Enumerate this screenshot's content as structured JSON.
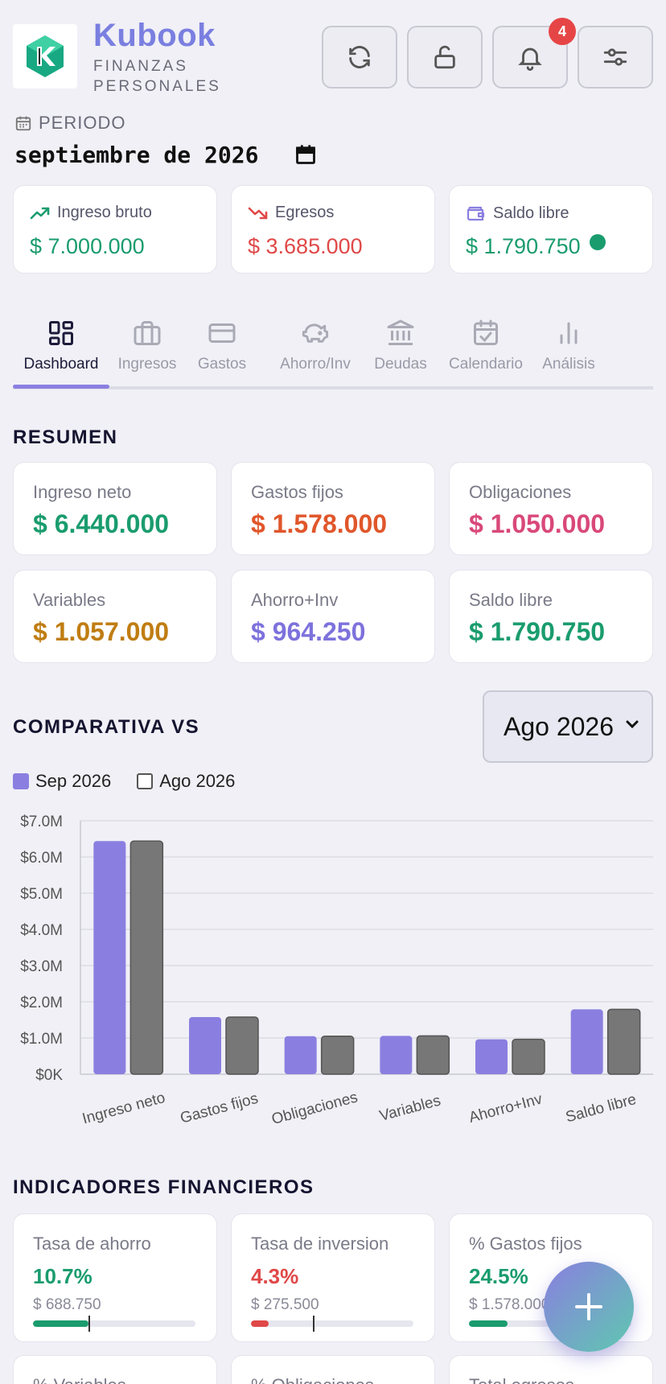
{
  "header": {
    "brand": "Kubook",
    "tagline_line1": "FINANZAS",
    "tagline_line2": "PERSONALES",
    "notifications_count": "4",
    "buttons": [
      "refresh-icon",
      "unlock-icon",
      "bell-icon",
      "settings-sliders-icon"
    ]
  },
  "period": {
    "label": "PERIODO",
    "value": "septiembre de 2026"
  },
  "top_cards": [
    {
      "label": "Ingreso bruto",
      "value": "$ 7.000.000",
      "color": "#1a9c6e",
      "icon": "trend-up-icon"
    },
    {
      "label": "Egresos",
      "value": "$ 3.685.000",
      "color": "#e04848",
      "icon": "trend-down-icon"
    },
    {
      "label": "Saldo libre",
      "value": "$ 1.790.750",
      "color": "#1a9c6e",
      "icon": "wallet-icon",
      "status_color": "#1a9c6e"
    }
  ],
  "tabs": [
    {
      "label": "Dashboard",
      "icon": "dashboard-grid-icon",
      "active": true
    },
    {
      "label": "Ingresos",
      "icon": "briefcase-icon"
    },
    {
      "label": "Gastos",
      "icon": "credit-card-icon"
    },
    {
      "label": "Ahorro/Inv",
      "icon": "piggy-bank-icon"
    },
    {
      "label": "Deudas",
      "icon": "bank-icon"
    },
    {
      "label": "Calendario",
      "icon": "calendar-check-icon"
    },
    {
      "label": "Análisis",
      "icon": "bar-chart-icon"
    }
  ],
  "resumen": {
    "title": "RESUMEN",
    "cards": [
      {
        "label": "Ingreso neto",
        "value": "$ 6.440.000",
        "color": "#1a9c6e"
      },
      {
        "label": "Gastos fijos",
        "value": "$ 1.578.000",
        "color": "#e0562a"
      },
      {
        "label": "Obligaciones",
        "value": "$ 1.050.000",
        "color": "#d9487a"
      },
      {
        "label": "Variables",
        "value": "$ 1.057.000",
        "color": "#c07d12"
      },
      {
        "label": "Ahorro+Inv",
        "value": "$ 964.250",
        "color": "#7d72dc"
      },
      {
        "label": "Saldo libre",
        "value": "$ 1.790.750",
        "color": "#1a9c6e"
      }
    ]
  },
  "comparativa": {
    "title": "COMPARATIVA VS",
    "selected": "Ago 2026",
    "legend": [
      {
        "label": "Sep 2026",
        "color": "#8a7fe0",
        "filled": true
      },
      {
        "label": "Ago 2026",
        "color": "#777777",
        "filled": false
      }
    ]
  },
  "chart_data": {
    "type": "bar",
    "categories": [
      "Ingreso neto",
      "Gastos fijos",
      "Obligaciones",
      "Variables",
      "Ahorro+Inv",
      "Saldo libre"
    ],
    "series": [
      {
        "name": "Sep 2026",
        "values": [
          6440000,
          1578000,
          1050000,
          1057000,
          964250,
          1790750
        ],
        "color": "#8a7fe0"
      },
      {
        "name": "Ago 2026",
        "values": [
          6440000,
          1578000,
          1050000,
          1057000,
          964250,
          1790750
        ],
        "color": "#777777"
      }
    ],
    "y_ticks": [
      "$0K",
      "$1.0M",
      "$2.0M",
      "$3.0M",
      "$4.0M",
      "$5.0M",
      "$6.0M",
      "$7.0M"
    ],
    "ylim": [
      0,
      7000000
    ],
    "grid": true
  },
  "indicadores": {
    "title": "INDICADORES FINANCIEROS",
    "cards": [
      {
        "label": "Tasa de ahorro",
        "value": "10.7%",
        "sub": "$ 688.750",
        "color": "#1a9c6e",
        "progress": 0.34,
        "target": 0.34
      },
      {
        "label": "Tasa de inversion",
        "value": "4.3%",
        "sub": "$ 275.500",
        "color": "#e04848",
        "progress": 0.11,
        "target": 0.38
      },
      {
        "label": "% Gastos fijos",
        "value": "24.5%",
        "sub": "$ 1.578.000",
        "color": "#1a9c6e",
        "progress": 0.24,
        "target": null
      }
    ],
    "partial_labels": [
      "% Variables",
      "% Obligaciones",
      "Total egresos"
    ]
  },
  "fab": {
    "icon": "plus-icon"
  }
}
